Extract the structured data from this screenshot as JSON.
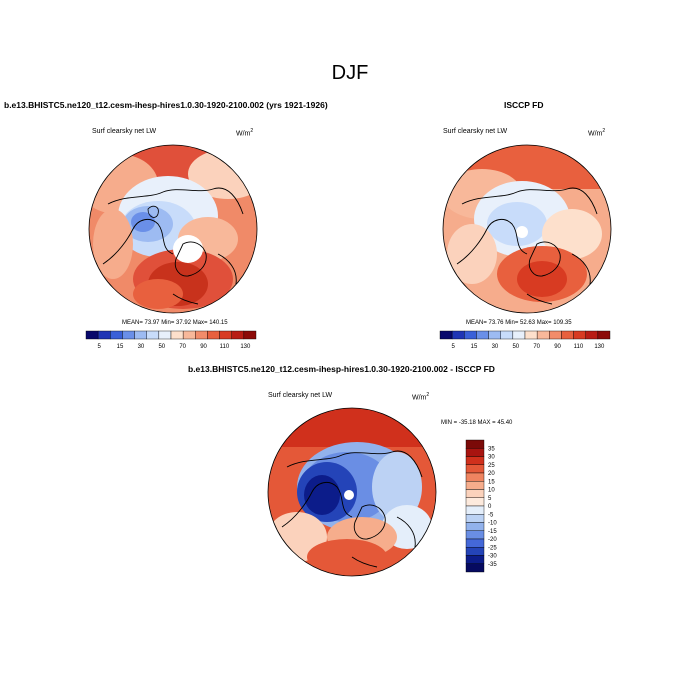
{
  "title": "DJF",
  "panels": [
    {
      "header": "b.e13.BHISTC5.ne120_t12.cesm-ihesp-hires1.0.30-1920-2100.002 (yrs 1921-1926)",
      "variable": "Surf clearsky net LW",
      "units_base": "W/m",
      "units_exp": "2",
      "stats": {
        "mean": "73.97",
        "min": "37.92",
        "max": "140.15"
      },
      "stats_text": "MEAN= 73.97  Min= 37.92  Max= 140.15",
      "colorbar_labels": [
        "5",
        "15",
        "30",
        "50",
        "70",
        "90",
        "110",
        "130"
      ]
    },
    {
      "header": "ISCCP FD",
      "variable": "Surf clearsky net LW",
      "units_base": "W/m",
      "units_exp": "2",
      "stats": {
        "mean": "73.76",
        "min": "52.63",
        "max": "109.35"
      },
      "stats_text": "MEAN= 73.76  Min= 52.63  Max= 109.35",
      "colorbar_labels": [
        "5",
        "15",
        "30",
        "50",
        "70",
        "90",
        "110",
        "130"
      ]
    },
    {
      "header": "b.e13.BHISTC5.ne120_t12.cesm-ihesp-hires1.0.30-1920-2100.002 - ISCCP FD",
      "variable": "Surf clearsky net LW",
      "units_base": "W/m",
      "units_exp": "2",
      "stats": {
        "min": "-35.18",
        "max": "45.40"
      },
      "stats_text": "MIN = -35.18  MAX =  45.40",
      "colorbar_labels": [
        "35",
        "30",
        "25",
        "20",
        "15",
        "10",
        "5",
        "0",
        "-5",
        "-10",
        "-15",
        "-20",
        "-25",
        "-30",
        "-35"
      ]
    }
  ],
  "colors": {
    "abs_scale": [
      "#08086b",
      "#1f35b5",
      "#3a60d8",
      "#6a8fe8",
      "#9dbbf2",
      "#c8dcfa",
      "#e8f0fb",
      "#fde0cc",
      "#f8b89a",
      "#f28c6a",
      "#e8603e",
      "#d83b22",
      "#b81c14",
      "#8c0a08"
    ],
    "diff_scale": [
      "#7b0a08",
      "#a81410",
      "#d0301c",
      "#e45838",
      "#ef8460",
      "#f6ad8c",
      "#fbd2bc",
      "#fdeadd",
      "#e4eefa",
      "#bcd2f4",
      "#92b2ec",
      "#6a8ee4",
      "#4468d8",
      "#2444b8",
      "#0c1c8a",
      "#060a60"
    ]
  }
}
